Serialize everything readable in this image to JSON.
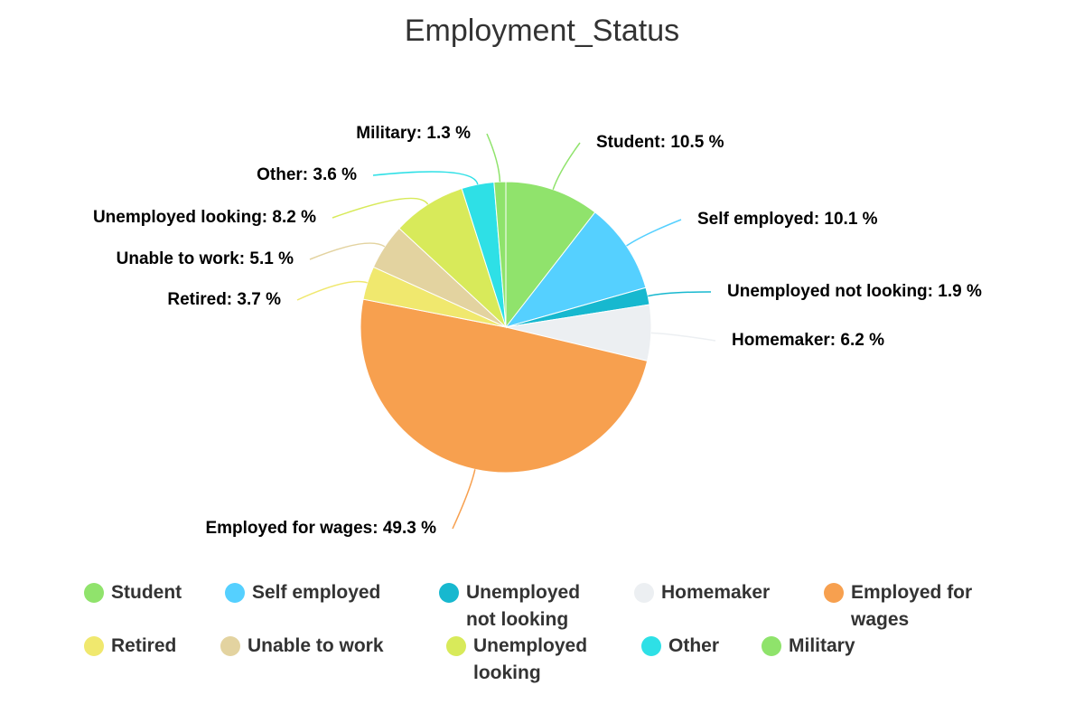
{
  "chart_data": {
    "type": "pie",
    "title": "Employment_Status",
    "categories": [
      "Student",
      "Self employed",
      "Unemployed not looking",
      "Homemaker",
      "Employed for wages",
      "Retired",
      "Unable to work",
      "Unemployed looking",
      "Other",
      "Military"
    ],
    "values": [
      10.5,
      10.1,
      1.9,
      6.2,
      49.3,
      3.7,
      5.1,
      8.2,
      3.6,
      1.3
    ],
    "value_labels": [
      "Student: 10.5 %",
      "Self employed: 10.1 %",
      "Unemployed not looking: 1.9 %",
      "Homemaker: 6.2 %",
      "Employed for wages: 49.3 %",
      "Retired: 3.7 %",
      "Unable to work: 5.1 %",
      "Unemployed looking: 8.2 %",
      "Other: 3.6 %",
      "Military: 1.3 %"
    ],
    "colors": [
      "#90e36c",
      "#55d0ff",
      "#17b8cf",
      "#eceff2",
      "#f7a04f",
      "#f0e86e",
      "#e3d3a0",
      "#d8ea5a",
      "#2ee0e6",
      "#8fe36b"
    ]
  }
}
